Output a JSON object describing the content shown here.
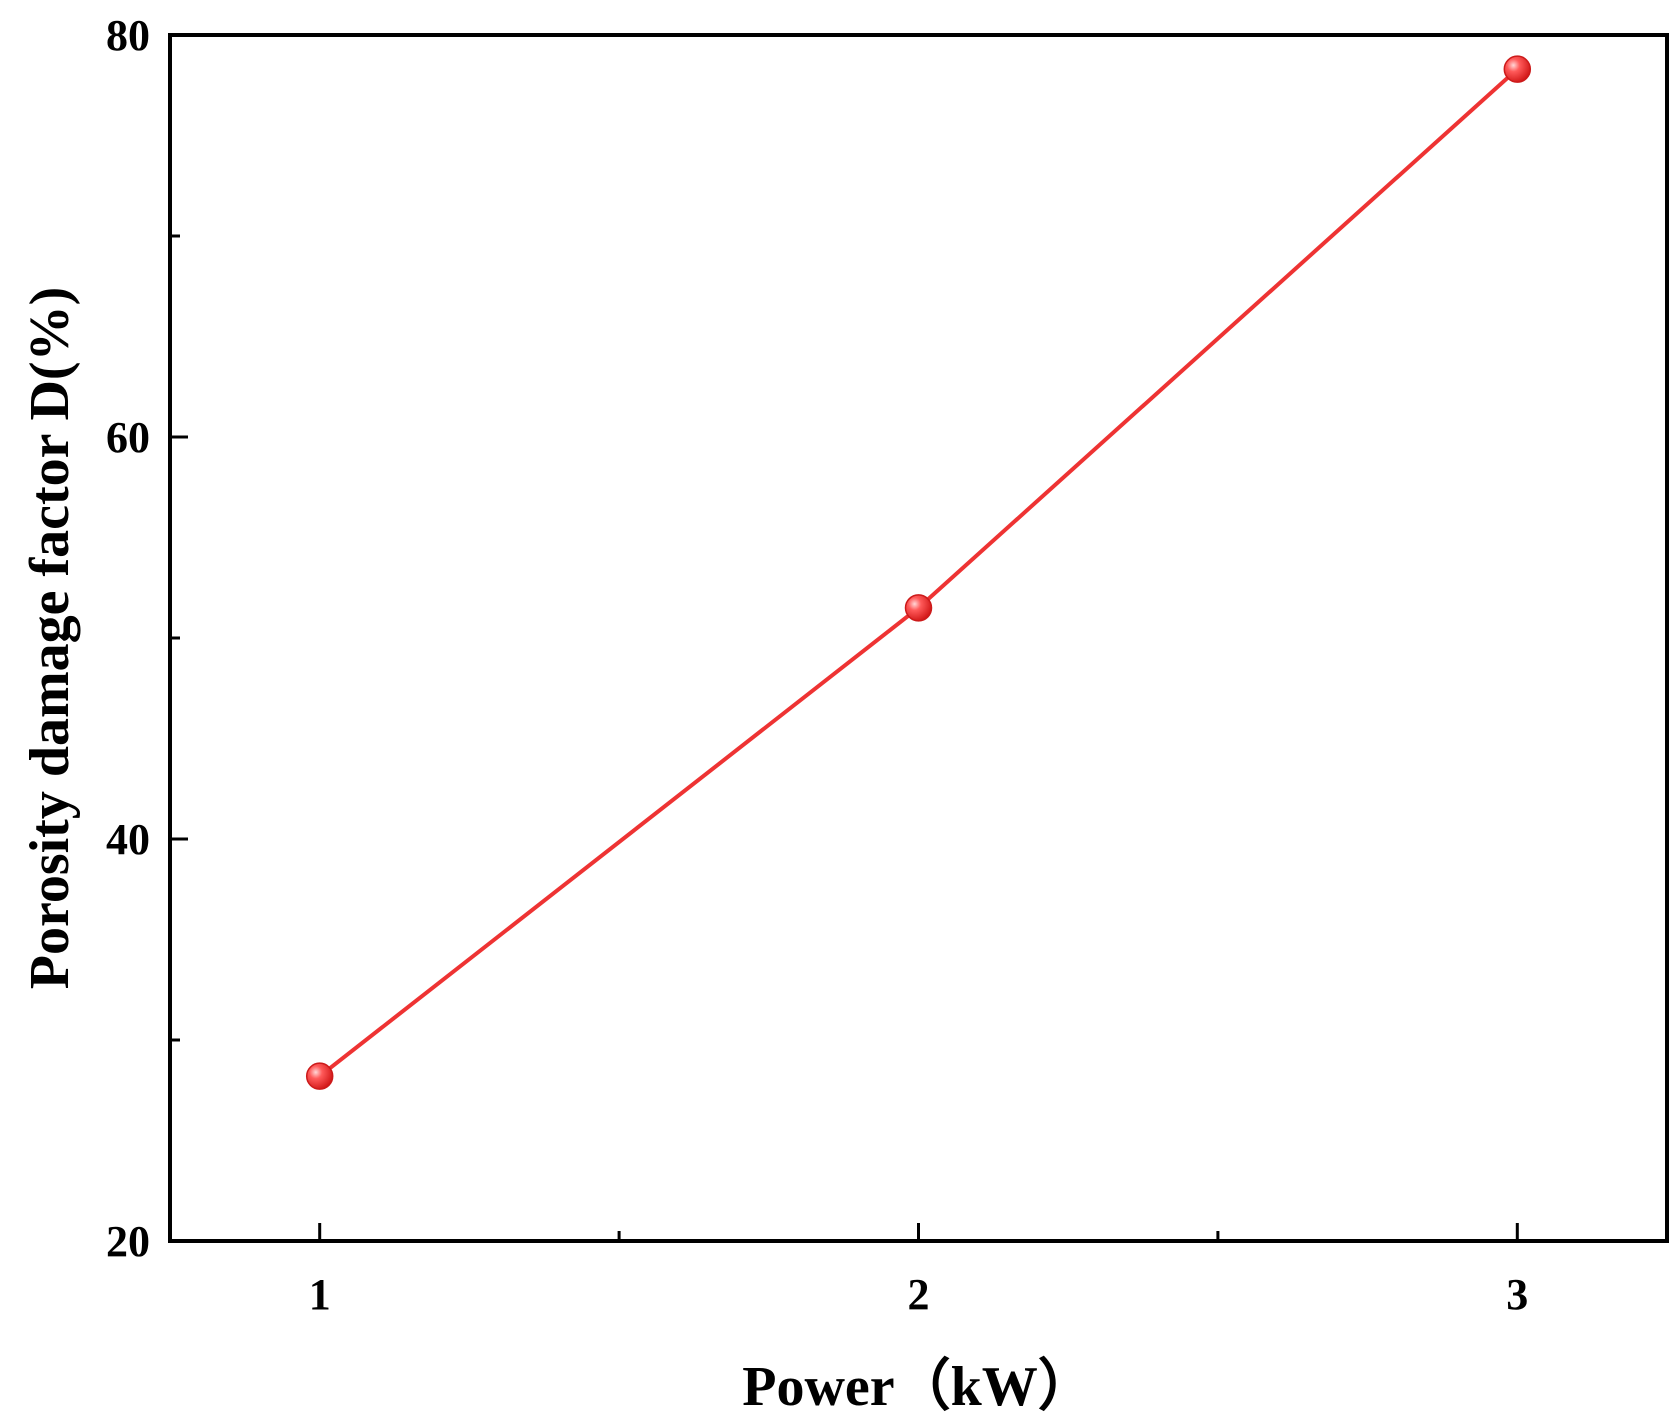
{
  "chart_data": {
    "type": "line",
    "title": "",
    "xlabel": "Power（kW）",
    "ylabel": "Porosity damage factor D(%)",
    "xlim": [
      0.75,
      3.25
    ],
    "ylim": [
      20,
      80
    ],
    "x_ticks": [
      1,
      2,
      3
    ],
    "x_minor_ticks": [
      1.5,
      2.5
    ],
    "y_ticks": [
      20,
      40,
      60,
      80
    ],
    "y_minor_ticks": [
      30,
      50,
      70
    ],
    "x_tick_labels": [
      "1",
      "2",
      "3"
    ],
    "y_tick_labels": [
      "20",
      "40",
      "60",
      "80"
    ],
    "grid": false,
    "legend": "none",
    "series": [
      {
        "x": [
          1,
          2,
          3
        ],
        "values": [
          28.2,
          51.5,
          78.3
        ],
        "color": "#ee3333",
        "marker": "circle"
      }
    ]
  }
}
